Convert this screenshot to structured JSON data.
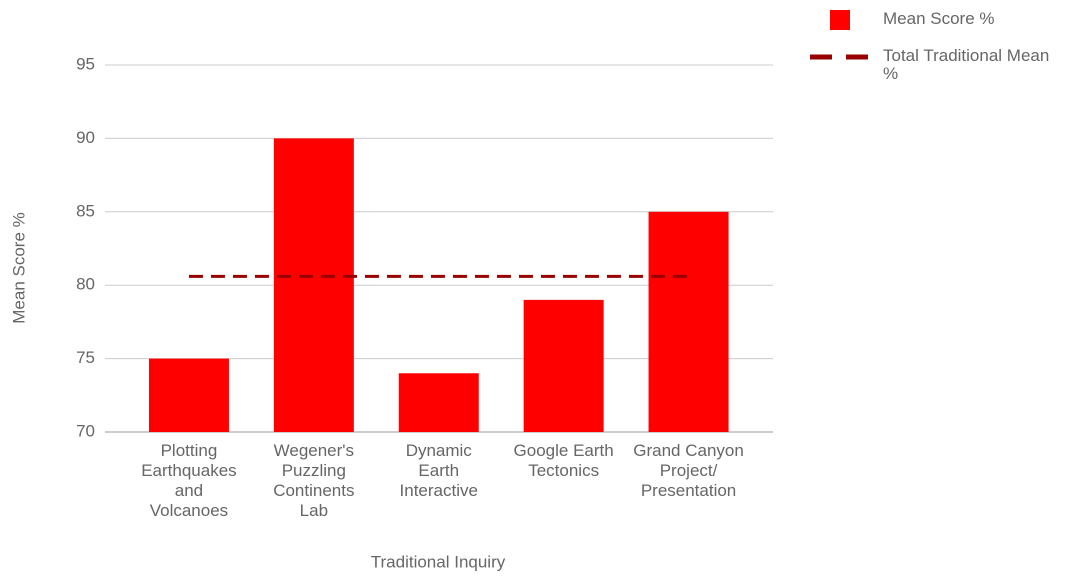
{
  "chart_data": {
    "type": "bar",
    "categories": [
      "Plotting Earthquakes and Volcanoes",
      "Wegener's Puzzling Continents Lab",
      "Dynamic Earth Interactive",
      "Google Earth Tectonics",
      "Grand Canyon Project/ Presentation"
    ],
    "series": [
      {
        "name": "Mean Score %",
        "type": "bar",
        "color": "#ff0000",
        "values": [
          75,
          90,
          74,
          79,
          85
        ]
      },
      {
        "name": "Total Traditional Mean %",
        "type": "line",
        "color": "#990000",
        "dashed": true,
        "values": [
          80.6,
          80.6,
          80.6,
          80.6,
          80.6
        ]
      }
    ],
    "xlabel": "Traditional Inquiry",
    "ylabel": "Mean Score %",
    "ylim": [
      70,
      95
    ],
    "yticks": [
      70,
      75,
      80,
      85,
      90,
      95
    ],
    "grid": true,
    "legend": "top-right"
  }
}
